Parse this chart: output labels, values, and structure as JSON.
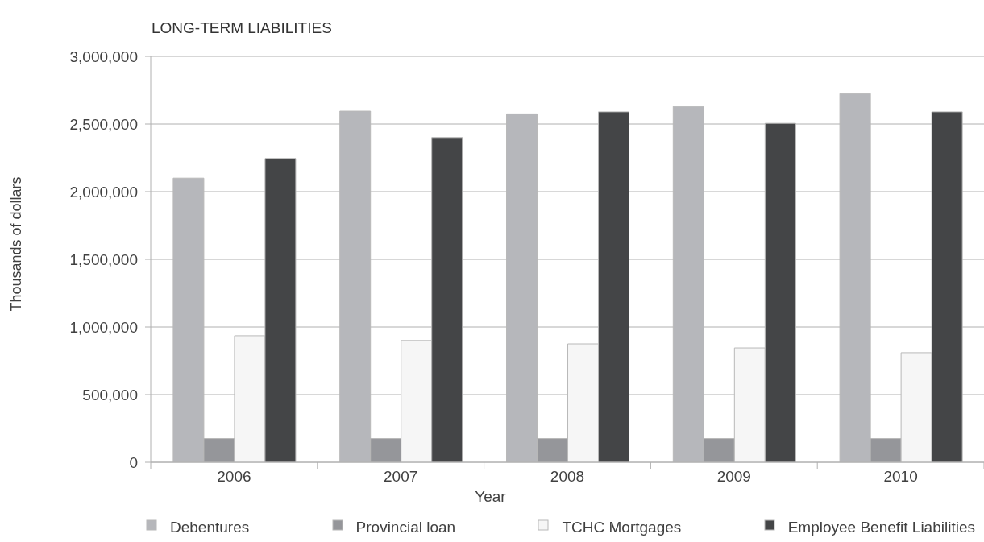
{
  "chart_data": {
    "type": "bar",
    "title": "LONG-TERM LIABILITIES",
    "xlabel": "Year",
    "ylabel": "Thousands of dollars",
    "categories": [
      "2006",
      "2007",
      "2008",
      "2009",
      "2010"
    ],
    "series": [
      {
        "name": "Debentures",
        "color": "#b6b7bb",
        "values": [
          2100000,
          2595000,
          2575000,
          2630000,
          2725000
        ]
      },
      {
        "name": "Provincial loan",
        "color": "#95969a",
        "values": [
          175000,
          175000,
          175000,
          175000,
          175000
        ]
      },
      {
        "name": "TCHC Mortgages",
        "color": "#f6f6f6",
        "values": [
          935000,
          900000,
          875000,
          845000,
          810000
        ]
      },
      {
        "name": "Employee Benefit Liabilities",
        "color": "#444547",
        "values": [
          2245000,
          2400000,
          2590000,
          2505000,
          2590000
        ]
      }
    ],
    "ylim": [
      0,
      3000000
    ],
    "yticks": [
      0,
      {
        "value": 500000,
        "label": "500,000"
      },
      {
        "value": 1000000,
        "label": "1,000,000"
      },
      {
        "value": 1500000,
        "label": "1,500,000"
      },
      {
        "value": 2000000,
        "label": "2,000,000"
      },
      {
        "value": 2500000,
        "label": "2,500,000"
      },
      {
        "value": 3000000,
        "label": "3,000,000"
      }
    ],
    "grid": "y",
    "legend": "bottom"
  }
}
